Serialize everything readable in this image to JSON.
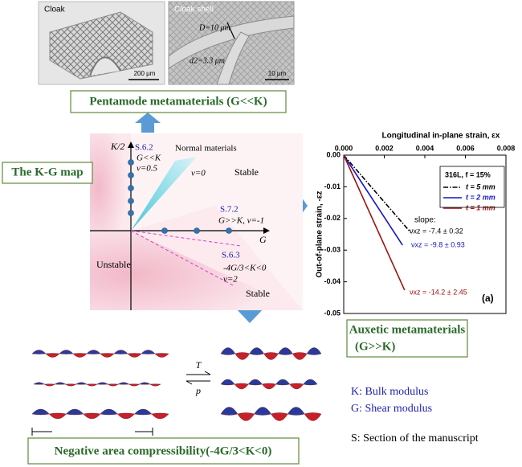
{
  "photos": {
    "left_label": "Cloak",
    "left_scale": "200 μm",
    "right_label": "Cloak shell",
    "right_scale": "10 μm",
    "right_D": "D=10 μm",
    "right_d": "d2=3.3 μm"
  },
  "boxes": {
    "pentamode": "Pentamode metamaterials (G<<K)",
    "kg_map": "The K-G map",
    "auxetic": [
      "Auxetic metamaterials",
      "(G>>K)"
    ],
    "nac": "Negative area compressibility(-4G/3<K<0)"
  },
  "kg_map": {
    "k_axis": "K/2",
    "g_axis": "G",
    "s62": "S.6.2",
    "s62_cond": "G<<K",
    "s62_nu": "ν=0.5",
    "normal": "Normal materials",
    "normal_nu": "ν=0",
    "stable_top": "Stable",
    "s72": "S.7.2",
    "s72_cond": "G>>K, ν=-1",
    "unstable": "Unstable",
    "s63": "S.6.3",
    "s63_cond": "-4G/3<K<0",
    "s63_nu": "ν=2",
    "stable_bottom": "Stable"
  },
  "transition": {
    "T": "T",
    "p": "p"
  },
  "legend": {
    "K": "K: Bulk modulus",
    "G": "G: Shear modulus",
    "S": "S: Section of the manuscript"
  },
  "chart_data": {
    "type": "line",
    "x_label": "Longitudinal in-plane strain, εx",
    "y_label": "Out-of-plane strain, -εz",
    "legend_title": "316L, f = 15%",
    "panel_label": "(a)",
    "annotation_title": "slope:",
    "xlim": [
      0,
      0.008
    ],
    "ylim": [
      -0.05,
      0
    ],
    "xticks": [
      {
        "value": 0,
        "label": "0.000"
      },
      0.002,
      0.004,
      0.006,
      0.008
    ],
    "yticks": [
      {
        "value": 0,
        "label": "0.00"
      },
      -0.01,
      -0.02,
      -0.03,
      -0.04,
      -0.05
    ],
    "series": [
      {
        "name": "t = 5 mm",
        "color": "#000000",
        "dash": "dashdot",
        "x": [
          0,
          0.0033
        ],
        "values": [
          0,
          -0.0244
        ],
        "annotation": "νxz = -7.4 ± 0.32"
      },
      {
        "name": "t = 2 mm",
        "color": "#1414c8",
        "dash": "solid",
        "x": [
          0,
          0.0029
        ],
        "values": [
          0,
          -0.0284
        ],
        "annotation": "νxz = -9.8 ± 0.93"
      },
      {
        "name": "t = 1 mm",
        "color": "#a01010",
        "dash": "solid",
        "x": [
          0,
          0.003
        ],
        "values": [
          0,
          -0.0426
        ],
        "annotation": "νxz = -14.2 ± 2.45"
      }
    ]
  }
}
